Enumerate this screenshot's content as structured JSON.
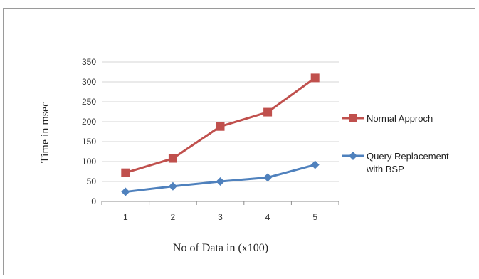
{
  "chart_data": {
    "type": "line",
    "x": [
      1,
      2,
      3,
      4,
      5
    ],
    "categories": [
      "1",
      "2",
      "3",
      "4",
      "5"
    ],
    "series": [
      {
        "name": "Normal Approch",
        "values": [
          72,
          108,
          188,
          224,
          310
        ],
        "color": "#c0504d",
        "marker": "square"
      },
      {
        "name_lines": [
          "Query Replacement",
          "with BSP"
        ],
        "values": [
          24,
          38,
          50,
          60,
          92
        ],
        "color": "#4f81bd",
        "marker": "diamond"
      }
    ],
    "xlabel": "No of Data in (x100)",
    "ylabel": "Time in msec",
    "ylim": [
      0,
      350
    ],
    "yticks": [
      "0",
      "50",
      "100",
      "150",
      "200",
      "250",
      "300",
      "350"
    ],
    "grid": true,
    "legend": "right"
  }
}
